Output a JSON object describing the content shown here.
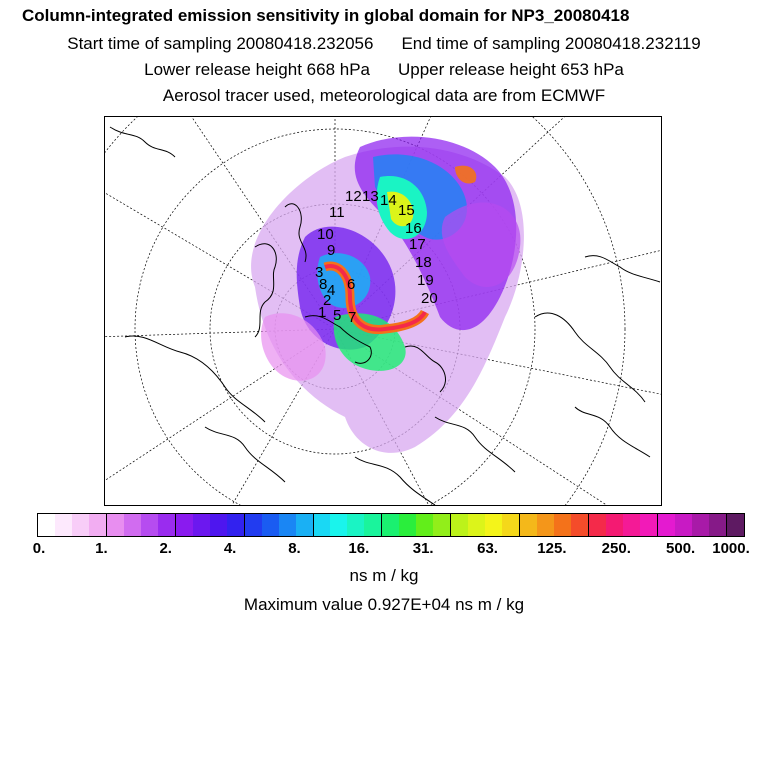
{
  "header": {
    "title": "Column-integrated emission sensitivity in global domain for NP3_20080418",
    "start_label": "Start time of sampling 20080418.232056",
    "end_label": "End time of sampling 20080418.232119",
    "lower_label": "Lower release height  668 hPa",
    "upper_label": "Upper release height  653 hPa",
    "info_line": "Aerosol tracer used, meteorological data are from ECMWF"
  },
  "map": {
    "projection": "polar stereographic",
    "trajectory_labels": [
      "1",
      "2",
      "3",
      "4",
      "5",
      "6",
      "7",
      "8",
      "9",
      "10",
      "11",
      "12",
      "13",
      "14",
      "15",
      "16",
      "17",
      "18",
      "19",
      "20"
    ]
  },
  "colorbar": {
    "colors": [
      "#ffffff",
      "#fde9fd",
      "#f8cdf8",
      "#f2adf2",
      "#e88ef0",
      "#d16cf0",
      "#b64cf0",
      "#9a2cef",
      "#8a1bef",
      "#6c18ef",
      "#4e16ef",
      "#3222ef",
      "#223cf0",
      "#1a5cf2",
      "#1a86f4",
      "#1ab0f4",
      "#1ad8f4",
      "#1af4ec",
      "#1af4c4",
      "#1af49c",
      "#1af070",
      "#2aee3c",
      "#62ee1a",
      "#92ee1a",
      "#bcf21a",
      "#dcf41a",
      "#f4f41a",
      "#f4d81a",
      "#f4b81a",
      "#f4961a",
      "#f4721a",
      "#f44c2a",
      "#f42a4a",
      "#f41a72",
      "#f41a96",
      "#f21ab8",
      "#e41ad0",
      "#c81ac4",
      "#a81aa8",
      "#861a88",
      "#5e1a62"
    ],
    "tick_labels": [
      "0.",
      "1.",
      "2.",
      "4.",
      "8.",
      "16.",
      "31.",
      "63.",
      "125.",
      "250.",
      "500.",
      "1000."
    ],
    "unit": "ns m / kg"
  },
  "max_value_text": "Maximum value  0.927E+04 ns m / kg"
}
